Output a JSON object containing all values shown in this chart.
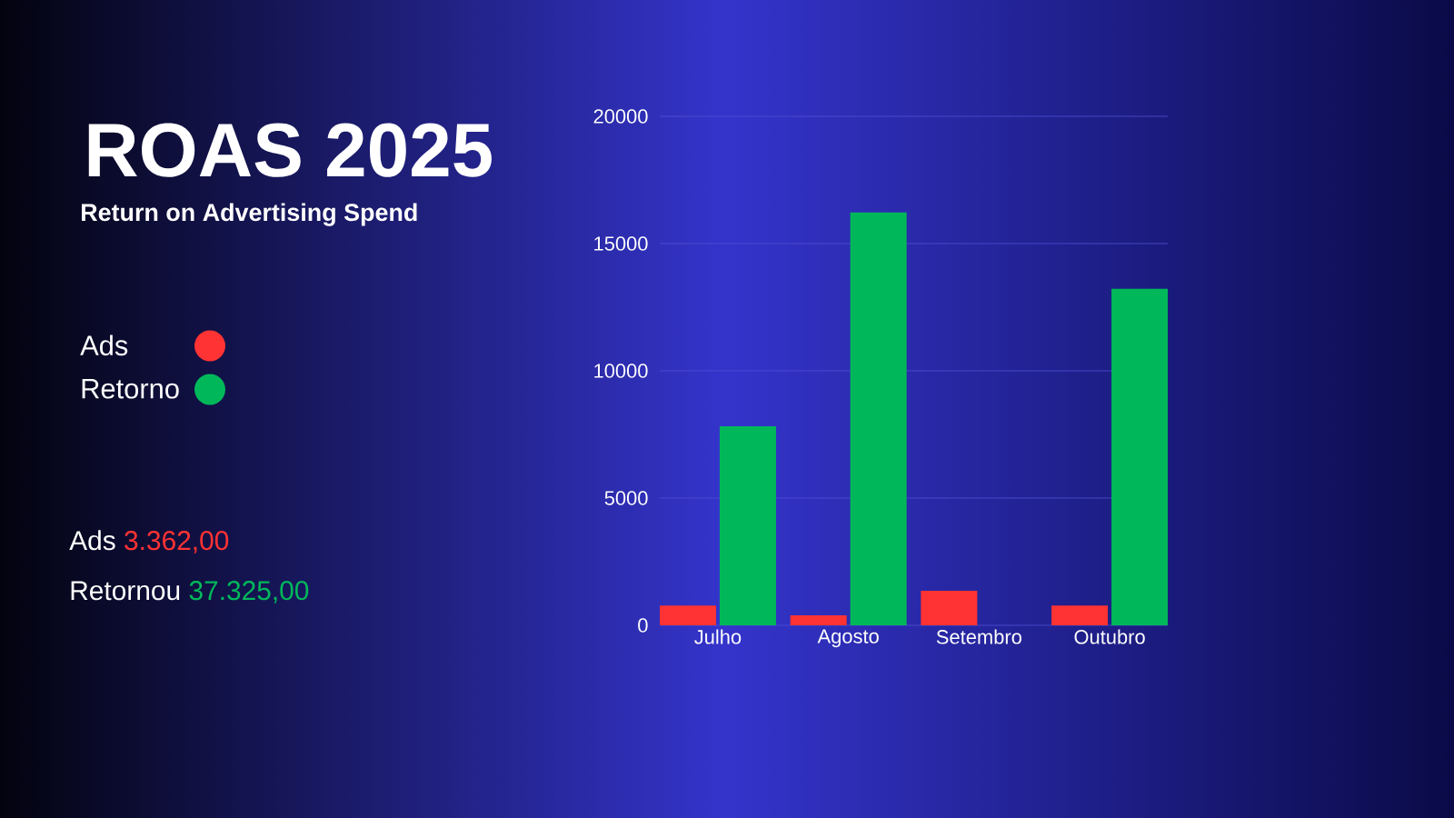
{
  "chart_data": {
    "type": "bar",
    "title": "ROAS 2025",
    "subtitle": "Return on Advertising Spend",
    "categories": [
      "Julho",
      "Agosto",
      "Setembro",
      "Outubro"
    ],
    "series": [
      {
        "name": "Ads",
        "color": "#ff3333",
        "values": [
          780,
          390,
          1360,
          780
        ]
      },
      {
        "name": "Retorno",
        "color": "#00b85a",
        "values": [
          7820,
          16220,
          null,
          13220
        ]
      }
    ],
    "ylim": [
      0,
      20000
    ],
    "yticks": [
      0,
      5000,
      10000,
      15000,
      20000
    ],
    "grid": "y",
    "legend": "left",
    "annotations": [
      "Ads",
      "3.362,00",
      "Retornou",
      "37.325,00"
    ]
  }
}
